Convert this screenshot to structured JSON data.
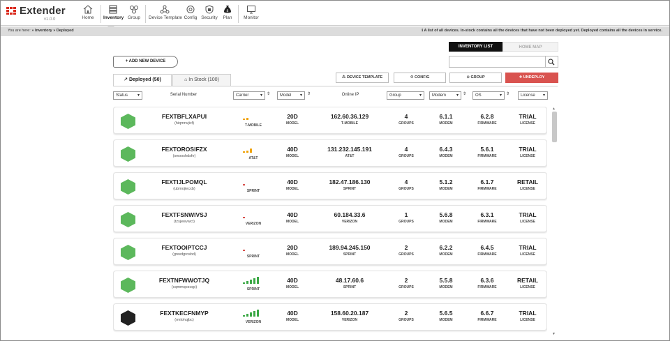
{
  "app": {
    "name": "Extender",
    "version": "v1.0.0"
  },
  "nav": {
    "items": [
      {
        "label": "Home",
        "icon": "home-icon"
      },
      {
        "label": "Inventory",
        "icon": "inventory-icon",
        "active": true
      },
      {
        "label": "Group",
        "icon": "group-icon"
      },
      {
        "label": "Device Template",
        "icon": "device-template-icon"
      },
      {
        "label": "Config",
        "icon": "config-icon"
      },
      {
        "label": "Security",
        "icon": "security-icon"
      },
      {
        "label": "Plan",
        "icon": "plan-icon"
      },
      {
        "label": "Monitor",
        "icon": "monitor-icon"
      }
    ]
  },
  "breadcrumb": {
    "prefix": "You are here: ",
    "path": "» Inventory » Deployed"
  },
  "info_text": "ℹ A list of all devices. In-stock contains all the devices that have not been deployed yet. Deployed contains all the devices in service.",
  "view_toggle": {
    "inventory_list": "INVENTORY LIST",
    "home_map": "HOME MAP"
  },
  "add_device_label": "+ ADD NEW DEVICE",
  "search": {
    "value": "",
    "placeholder": ""
  },
  "tabs": {
    "deployed": "Deployed (50)",
    "in_stock": "In Stock (100)"
  },
  "actions": {
    "device_template": "⁂ DEVICE TEMPLATE",
    "config": "⚙ CONFIG",
    "group": "⊙ GROUP",
    "undeploy": "✚ UNDEPLOY"
  },
  "columns": {
    "status": "Status",
    "serial": "Serial Number",
    "carrier": "Carrier",
    "model": "Model",
    "online_ip": "Online IP",
    "group": "Group",
    "modem": "Modem",
    "os": "OS",
    "license": "License"
  },
  "colors": {
    "healthy": "#5cb85c",
    "offline": "#222222",
    "signal_strong": "#3aa845",
    "signal_mid": "#f0a30a",
    "signal_weak": "#d9534f",
    "undeploy": "#d9534f"
  },
  "units": {
    "model": "MODEL",
    "groups": "GROUPS",
    "modem": "MODEM",
    "firmware": "FIRMWARE",
    "license": "LICENSE"
  },
  "devices": [
    {
      "status": "online",
      "serial": "FEXTBFLXAPUI",
      "alias": "(hiqmnvjicf)",
      "carrier": "T-MOBILE",
      "signal": 2,
      "signal_color": "mid",
      "model": "20D",
      "ip": "162.60.36.129",
      "ip_carrier": "T-MOBILE",
      "groups": "4",
      "modem": "6.1.1",
      "firmware": "6.2.8",
      "license": "TRIAL"
    },
    {
      "status": "online",
      "serial": "FEXTOROSIFZX",
      "alias": "(swooshdsfe)",
      "carrier": "AT&T",
      "signal": 3,
      "signal_color": "mid",
      "model": "40D",
      "ip": "131.232.145.191",
      "ip_carrier": "AT&T",
      "groups": "4",
      "modem": "6.4.3",
      "firmware": "5.6.1",
      "license": "TRIAL"
    },
    {
      "status": "online",
      "serial": "FEXTIJLPOMQL",
      "alias": "(ubmojiecxb)",
      "carrier": "SPRINT",
      "signal": 1,
      "signal_color": "weak",
      "model": "40D",
      "ip": "182.47.186.130",
      "ip_carrier": "SPRINT",
      "groups": "4",
      "modem": "5.1.2",
      "firmware": "6.1.7",
      "license": "RETAIL"
    },
    {
      "status": "online",
      "serial": "FEXTFSNWIVSJ",
      "alias": "(tzsjewvwct)",
      "carrier": "VERIZON",
      "signal": 1,
      "signal_color": "weak",
      "model": "40D",
      "ip": "60.184.33.6",
      "ip_carrier": "VERIZON",
      "groups": "1",
      "modem": "5.6.8",
      "firmware": "6.3.1",
      "license": "TRIAL"
    },
    {
      "status": "online",
      "serial": "FEXTOOIPTCCJ",
      "alias": "(gnwdgrosbd)",
      "carrier": "SPRINT",
      "signal": 1,
      "signal_color": "weak",
      "model": "20D",
      "ip": "189.94.245.150",
      "ip_carrier": "SPRINT",
      "groups": "2",
      "modem": "6.2.2",
      "firmware": "6.4.5",
      "license": "TRIAL"
    },
    {
      "status": "online",
      "serial": "FEXTNFWWOTJQ",
      "alias": "(cqmmqozcqp)",
      "carrier": "SPRINT",
      "signal": 5,
      "signal_color": "strong",
      "model": "40D",
      "ip": "48.17.60.6",
      "ip_carrier": "SPRINT",
      "groups": "2",
      "modem": "5.5.8",
      "firmware": "6.3.6",
      "license": "RETAIL"
    },
    {
      "status": "offline",
      "serial": "FEXTKECFNMYP",
      "alias": "(rmlohqjbc)",
      "carrier": "VERIZON",
      "signal": 5,
      "signal_color": "strong",
      "model": "40D",
      "ip": "158.60.20.187",
      "ip_carrier": "VERIZON",
      "groups": "2",
      "modem": "5.6.5",
      "firmware": "6.6.7",
      "license": "TRIAL"
    }
  ]
}
